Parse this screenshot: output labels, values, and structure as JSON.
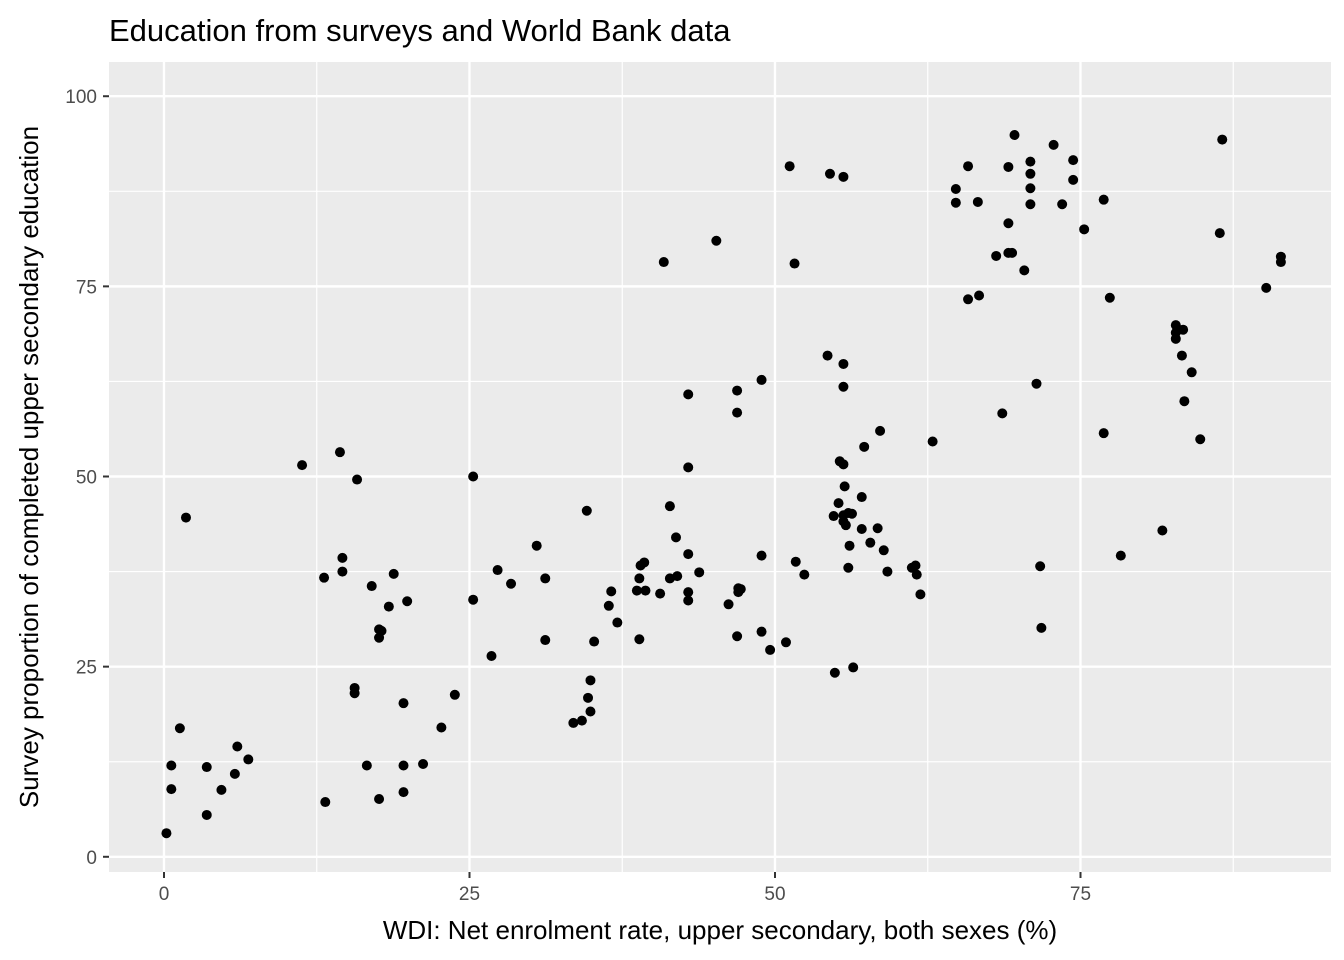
{
  "chart_data": {
    "type": "scatter",
    "title": "Education from surveys and World Bank data",
    "xlabel": "WDI: Net enrolment rate, upper secondary, both sexes (%)",
    "ylabel": "Survey proportion of completed upper secondary education",
    "xlim": [
      -4.5,
      95.5
    ],
    "ylim": [
      -2,
      104.5
    ],
    "x_ticks": [
      0,
      25,
      50,
      75
    ],
    "y_ticks": [
      0,
      25,
      50,
      75,
      100
    ],
    "x_tick_labels": [
      "0",
      "25",
      "50",
      "75"
    ],
    "y_tick_labels": [
      "0",
      "25",
      "50",
      "75",
      "100"
    ],
    "grid": true,
    "legend": "none",
    "colors": {
      "panel": "#ebebeb",
      "grid": "#ffffff",
      "point": "#000000",
      "tick": "#333333"
    },
    "points": [
      {
        "x": 0.2,
        "y": 3.1
      },
      {
        "x": 0.6,
        "y": 8.9
      },
      {
        "x": 0.6,
        "y": 12.0
      },
      {
        "x": 1.3,
        "y": 16.9
      },
      {
        "x": 1.8,
        "y": 44.6
      },
      {
        "x": 3.5,
        "y": 5.5
      },
      {
        "x": 3.5,
        "y": 11.8
      },
      {
        "x": 4.7,
        "y": 8.8
      },
      {
        "x": 5.8,
        "y": 10.9
      },
      {
        "x": 6.0,
        "y": 14.5
      },
      {
        "x": 6.9,
        "y": 12.8
      },
      {
        "x": 11.3,
        "y": 51.5
      },
      {
        "x": 13.1,
        "y": 36.7
      },
      {
        "x": 13.2,
        "y": 7.2
      },
      {
        "x": 14.4,
        "y": 53.2
      },
      {
        "x": 14.6,
        "y": 39.3
      },
      {
        "x": 14.6,
        "y": 37.5
      },
      {
        "x": 15.6,
        "y": 21.5
      },
      {
        "x": 15.6,
        "y": 22.2
      },
      {
        "x": 15.8,
        "y": 49.6
      },
      {
        "x": 16.6,
        "y": 12.0
      },
      {
        "x": 17.0,
        "y": 35.6
      },
      {
        "x": 17.6,
        "y": 29.9
      },
      {
        "x": 17.6,
        "y": 28.8
      },
      {
        "x": 17.8,
        "y": 29.7
      },
      {
        "x": 17.6,
        "y": 7.6
      },
      {
        "x": 18.4,
        "y": 32.9
      },
      {
        "x": 18.8,
        "y": 37.2
      },
      {
        "x": 19.6,
        "y": 20.2
      },
      {
        "x": 19.6,
        "y": 12.0
      },
      {
        "x": 19.6,
        "y": 8.5
      },
      {
        "x": 19.9,
        "y": 33.6
      },
      {
        "x": 21.2,
        "y": 12.2
      },
      {
        "x": 22.7,
        "y": 17.0
      },
      {
        "x": 23.8,
        "y": 21.3
      },
      {
        "x": 25.3,
        "y": 50.0
      },
      {
        "x": 25.3,
        "y": 33.8
      },
      {
        "x": 26.8,
        "y": 26.4
      },
      {
        "x": 27.3,
        "y": 37.7
      },
      {
        "x": 28.4,
        "y": 35.9
      },
      {
        "x": 30.5,
        "y": 40.9
      },
      {
        "x": 31.2,
        "y": 36.6
      },
      {
        "x": 31.2,
        "y": 28.5
      },
      {
        "x": 33.5,
        "y": 17.6
      },
      {
        "x": 34.2,
        "y": 17.9
      },
      {
        "x": 34.6,
        "y": 45.5
      },
      {
        "x": 34.7,
        "y": 20.9
      },
      {
        "x": 34.9,
        "y": 23.2
      },
      {
        "x": 34.9,
        "y": 19.1
      },
      {
        "x": 35.2,
        "y": 28.3
      },
      {
        "x": 36.4,
        "y": 33.0
      },
      {
        "x": 36.6,
        "y": 34.9
      },
      {
        "x": 37.1,
        "y": 30.8
      },
      {
        "x": 38.7,
        "y": 35.0
      },
      {
        "x": 38.9,
        "y": 28.6
      },
      {
        "x": 38.9,
        "y": 36.6
      },
      {
        "x": 39.0,
        "y": 38.3
      },
      {
        "x": 39.3,
        "y": 38.7
      },
      {
        "x": 39.4,
        "y": 35.0
      },
      {
        "x": 40.6,
        "y": 34.6
      },
      {
        "x": 40.9,
        "y": 78.2
      },
      {
        "x": 41.4,
        "y": 46.1
      },
      {
        "x": 41.4,
        "y": 36.6
      },
      {
        "x": 41.9,
        "y": 42.0
      },
      {
        "x": 42.0,
        "y": 36.9
      },
      {
        "x": 42.9,
        "y": 60.8
      },
      {
        "x": 42.9,
        "y": 51.2
      },
      {
        "x": 42.9,
        "y": 39.8
      },
      {
        "x": 42.9,
        "y": 34.8
      },
      {
        "x": 42.9,
        "y": 33.7
      },
      {
        "x": 43.8,
        "y": 37.4
      },
      {
        "x": 45.2,
        "y": 81.0
      },
      {
        "x": 46.2,
        "y": 33.2
      },
      {
        "x": 46.9,
        "y": 61.3
      },
      {
        "x": 46.9,
        "y": 58.4
      },
      {
        "x": 46.9,
        "y": 29.0
      },
      {
        "x": 47.0,
        "y": 35.3
      },
      {
        "x": 47.0,
        "y": 34.8
      },
      {
        "x": 47.2,
        "y": 35.2
      },
      {
        "x": 48.9,
        "y": 62.7
      },
      {
        "x": 48.9,
        "y": 39.6
      },
      {
        "x": 48.9,
        "y": 29.6
      },
      {
        "x": 49.6,
        "y": 27.2
      },
      {
        "x": 50.9,
        "y": 28.2
      },
      {
        "x": 51.2,
        "y": 90.8
      },
      {
        "x": 51.6,
        "y": 78.0
      },
      {
        "x": 51.7,
        "y": 38.8
      },
      {
        "x": 52.4,
        "y": 37.1
      },
      {
        "x": 54.3,
        "y": 65.9
      },
      {
        "x": 54.5,
        "y": 89.8
      },
      {
        "x": 54.8,
        "y": 44.8
      },
      {
        "x": 54.9,
        "y": 24.2
      },
      {
        "x": 55.2,
        "y": 46.5
      },
      {
        "x": 55.3,
        "y": 52.0
      },
      {
        "x": 55.6,
        "y": 89.4
      },
      {
        "x": 55.6,
        "y": 64.8
      },
      {
        "x": 55.6,
        "y": 61.8
      },
      {
        "x": 55.6,
        "y": 51.6
      },
      {
        "x": 55.6,
        "y": 44.9
      },
      {
        "x": 55.6,
        "y": 44.1
      },
      {
        "x": 55.7,
        "y": 48.7
      },
      {
        "x": 55.8,
        "y": 43.6
      },
      {
        "x": 56.0,
        "y": 45.2
      },
      {
        "x": 56.0,
        "y": 38.0
      },
      {
        "x": 56.1,
        "y": 40.9
      },
      {
        "x": 56.3,
        "y": 45.1
      },
      {
        "x": 56.4,
        "y": 24.9
      },
      {
        "x": 57.1,
        "y": 47.3
      },
      {
        "x": 57.1,
        "y": 43.1
      },
      {
        "x": 57.3,
        "y": 53.9
      },
      {
        "x": 57.8,
        "y": 41.3
      },
      {
        "x": 58.4,
        "y": 43.2
      },
      {
        "x": 58.6,
        "y": 56.0
      },
      {
        "x": 58.9,
        "y": 40.3
      },
      {
        "x": 59.2,
        "y": 37.5
      },
      {
        "x": 61.2,
        "y": 38.0
      },
      {
        "x": 61.5,
        "y": 38.3
      },
      {
        "x": 61.6,
        "y": 37.1
      },
      {
        "x": 61.9,
        "y": 34.5
      },
      {
        "x": 62.9,
        "y": 54.6
      },
      {
        "x": 64.8,
        "y": 87.8
      },
      {
        "x": 64.8,
        "y": 86.0
      },
      {
        "x": 65.8,
        "y": 90.8
      },
      {
        "x": 65.8,
        "y": 73.3
      },
      {
        "x": 66.6,
        "y": 86.1
      },
      {
        "x": 66.7,
        "y": 73.8
      },
      {
        "x": 68.1,
        "y": 79.0
      },
      {
        "x": 68.6,
        "y": 58.3
      },
      {
        "x": 69.1,
        "y": 90.7
      },
      {
        "x": 69.1,
        "y": 83.3
      },
      {
        "x": 69.1,
        "y": 79.4
      },
      {
        "x": 69.4,
        "y": 79.4
      },
      {
        "x": 69.6,
        "y": 94.9
      },
      {
        "x": 70.4,
        "y": 77.1
      },
      {
        "x": 70.9,
        "y": 91.4
      },
      {
        "x": 70.9,
        "y": 89.8
      },
      {
        "x": 70.9,
        "y": 87.9
      },
      {
        "x": 70.9,
        "y": 85.8
      },
      {
        "x": 71.4,
        "y": 62.2
      },
      {
        "x": 71.7,
        "y": 38.2
      },
      {
        "x": 71.8,
        "y": 30.1
      },
      {
        "x": 72.8,
        "y": 93.6
      },
      {
        "x": 73.5,
        "y": 85.8
      },
      {
        "x": 74.4,
        "y": 91.6
      },
      {
        "x": 74.4,
        "y": 89.0
      },
      {
        "x": 75.3,
        "y": 82.5
      },
      {
        "x": 76.9,
        "y": 86.4
      },
      {
        "x": 76.9,
        "y": 55.7
      },
      {
        "x": 77.4,
        "y": 73.5
      },
      {
        "x": 78.3,
        "y": 39.6
      },
      {
        "x": 81.7,
        "y": 42.9
      },
      {
        "x": 82.8,
        "y": 69.9
      },
      {
        "x": 82.8,
        "y": 68.9
      },
      {
        "x": 82.8,
        "y": 68.1
      },
      {
        "x": 83.4,
        "y": 69.3
      },
      {
        "x": 83.3,
        "y": 65.9
      },
      {
        "x": 83.5,
        "y": 59.9
      },
      {
        "x": 84.1,
        "y": 63.7
      },
      {
        "x": 84.8,
        "y": 54.9
      },
      {
        "x": 86.4,
        "y": 82.0
      },
      {
        "x": 86.6,
        "y": 94.3
      },
      {
        "x": 90.2,
        "y": 74.8
      },
      {
        "x": 91.4,
        "y": 78.9
      },
      {
        "x": 91.4,
        "y": 78.2
      }
    ]
  }
}
